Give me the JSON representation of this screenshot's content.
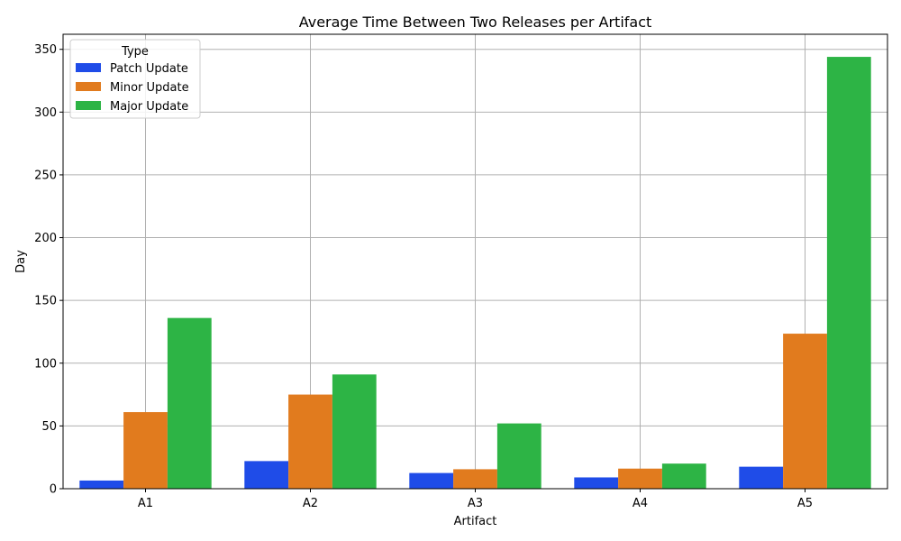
{
  "chart_data": {
    "type": "bar",
    "title": "Average Time Between Two Releases per Artifact",
    "xlabel": "Artifact",
    "ylabel": "Day",
    "categories": [
      "A1",
      "A2",
      "A3",
      "A4",
      "A5"
    ],
    "ylim": [
      0,
      362
    ],
    "yticks": [
      0,
      50,
      100,
      150,
      200,
      250,
      300,
      350
    ],
    "grid": true,
    "legend": {
      "title": "Type",
      "placement": "top-left"
    },
    "series": [
      {
        "name": "Patch Update",
        "color": "#1f4ce8",
        "values": [
          6.5,
          22,
          12.5,
          9,
          17.5
        ]
      },
      {
        "name": "Minor Update",
        "color": "#e17b1e",
        "values": [
          61,
          75,
          15.5,
          16,
          123.5
        ]
      },
      {
        "name": "Major Update",
        "color": "#2db445",
        "values": [
          136,
          91,
          52,
          20,
          344
        ]
      }
    ]
  }
}
